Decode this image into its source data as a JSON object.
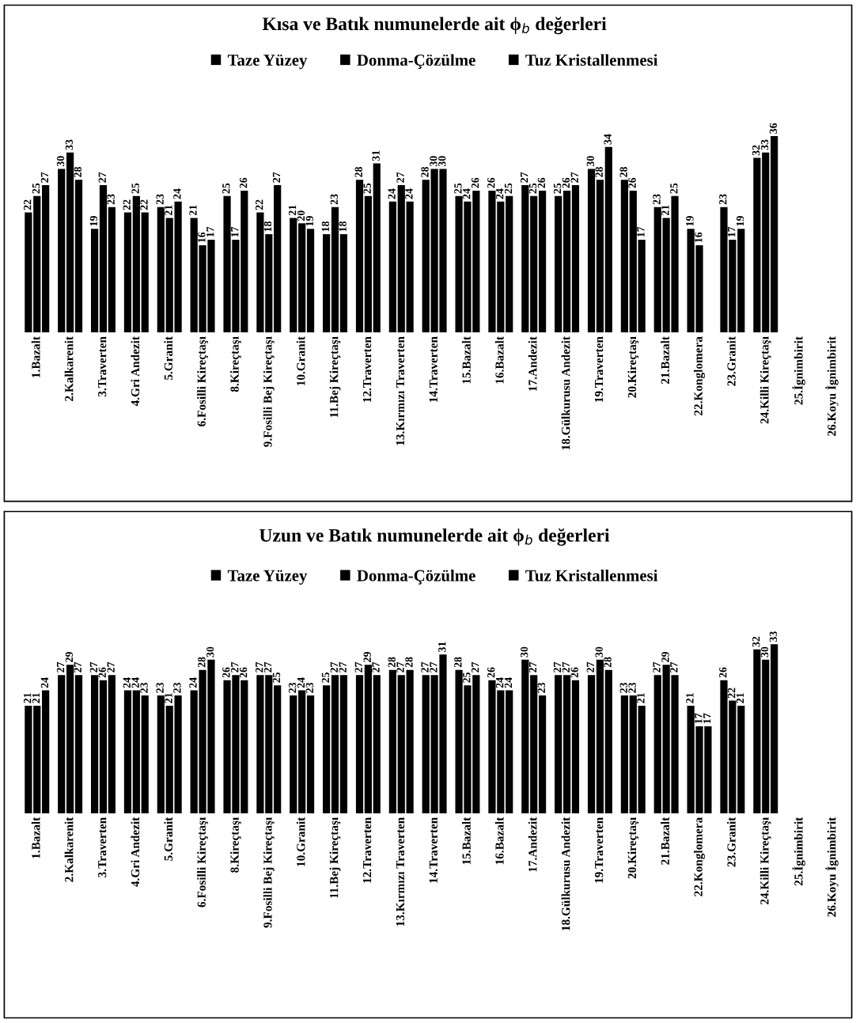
{
  "chart_data": [
    {
      "type": "bar",
      "title": "Kısa ve Batık numunelerde ait ϕ$_{b}$ değerleri",
      "legend": "top",
      "data_labels": true,
      "tick_labels": "x",
      "grid": false,
      "categories": [
        "1.Bazalt",
        "2.Kalkarenit",
        "3.Traverten",
        "4.Gri Andezit",
        "5.Granit",
        "6.Fosilli Kireçtaşı",
        "8.Kireçtaşı",
        "9.Fosilli Bej Kireçtaşı",
        "10.Granit",
        "11.Bej Kireçtaşı",
        "12.Traverten",
        "13.Kırmızı Traverten",
        "14.Traverten",
        "15.Bazalt",
        "16.Bazalt",
        "17.Andezit",
        "18.Gülkurusu Andezit",
        "19.Traverten",
        "20.Kireçtaşı",
        "21.Bazalt",
        "22.Konglomera",
        "23.Granit",
        "24.Killi Kireçtaşı",
        "25.İgnimbirit",
        "26.Koyu İgnimbirit"
      ],
      "series": [
        {
          "name": "Taze Yüzey",
          "color": "#000000",
          "values": [
            22,
            30,
            19,
            22,
            23,
            21,
            25,
            22,
            21,
            18,
            28,
            24,
            28,
            25,
            26,
            27,
            25,
            30,
            28,
            23,
            19,
            23,
            32,
            null,
            null
          ]
        },
        {
          "name": "Donma-Çözülme",
          "color": "#000000",
          "values": [
            25,
            33,
            27,
            25,
            21,
            16,
            17,
            18,
            20,
            23,
            25,
            27,
            30,
            24,
            24,
            25,
            26,
            28,
            26,
            21,
            16,
            17,
            33,
            null,
            null
          ]
        },
        {
          "name": "Tuz Kristallenmesi",
          "color": "#000000",
          "values": [
            27,
            28,
            23,
            22,
            24,
            17,
            26,
            27,
            19,
            18,
            31,
            24,
            30,
            26,
            25,
            26,
            27,
            34,
            17,
            25,
            null,
            19,
            36,
            null,
            null
          ]
        }
      ]
    },
    {
      "type": "bar",
      "title": "Uzun ve Batık numunelerde ait ϕ$_{b}$ değerleri",
      "legend": "top",
      "data_labels": true,
      "tick_labels": "x",
      "grid": false,
      "categories": [
        "1.Bazalt",
        "2.Kalkarenit",
        "3.Traverten",
        "4.Gri Andezit",
        "5.Granit",
        "6.Fosilli Kireçtaşı",
        "8.Kireçtaşı",
        "9.Fosilli Bej Kireçtaşı",
        "10.Granit",
        "11.Bej Kireçtaşı",
        "12.Traverten",
        "13.Kırmızı Traverten",
        "14.Traverten",
        "15.Bazalt",
        "16.Bazalt",
        "17.Andezit",
        "18.Gülkurusu Andezit",
        "19.Traverten",
        "20.Kireçtaşı",
        "21.Bazalt",
        "22.Konglomera",
        "23.Granit",
        "24.Killi Kireçtaşı",
        "25.İgnimbirit",
        "26.Koyu İgnimbirit"
      ],
      "series": [
        {
          "name": "Taze Yüzey",
          "color": "#000000",
          "values": [
            21,
            27,
            27,
            24,
            23,
            24,
            26,
            27,
            23,
            25,
            27,
            28,
            27,
            28,
            26,
            30,
            27,
            27,
            23,
            27,
            21,
            26,
            32,
            null,
            null
          ]
        },
        {
          "name": "Donma-Çözülme",
          "color": "#000000",
          "values": [
            21,
            29,
            26,
            24,
            21,
            28,
            27,
            27,
            24,
            27,
            29,
            27,
            27,
            25,
            24,
            27,
            27,
            30,
            23,
            29,
            17,
            22,
            30,
            null,
            null
          ]
        },
        {
          "name": "Tuz Kristallenmesi",
          "color": "#000000",
          "values": [
            24,
            27,
            27,
            23,
            23,
            30,
            26,
            25,
            23,
            27,
            27,
            28,
            31,
            27,
            24,
            23,
            26,
            28,
            21,
            27,
            17,
            21,
            33,
            null,
            null
          ]
        }
      ]
    }
  ]
}
